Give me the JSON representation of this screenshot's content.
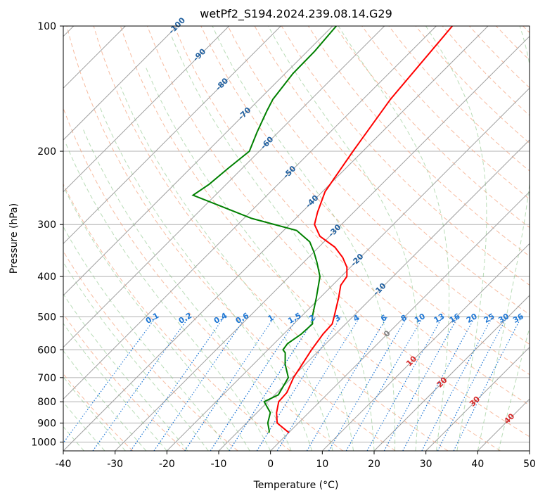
{
  "chart_data": {
    "type": "skew-t",
    "title": "wetPf2_S194.2024.239.08.14.G29",
    "xlabel": "Temperature (°C)",
    "ylabel": "Pressure (hPa)",
    "xlim": [
      -40,
      50
    ],
    "ylim": [
      1050,
      100
    ],
    "y_scale": "log",
    "x_ticks": [
      -40,
      -30,
      -20,
      -10,
      0,
      10,
      20,
      30,
      40,
      50
    ],
    "y_ticks": [
      100,
      200,
      300,
      400,
      500,
      600,
      700,
      800,
      900,
      1000
    ],
    "grid": true,
    "colors": {
      "temperature": "#ff0000",
      "dewpoint": "#008000",
      "isotherm": "#a0a0a0",
      "dry_adiabat": "#f4a582",
      "moist_adiabat": "#7fbf7b",
      "mixing_ratio": "#1f77d4",
      "wetbulb_label": "#1f5f9f",
      "isobar": "#b0b0b0"
    },
    "series": [
      {
        "name": "",
        "variable": "temperature",
        "points": [
          [
            950,
            0.1
          ],
          [
            900,
            -4.1
          ],
          [
            850,
            -6.2
          ],
          [
            800,
            -7.9
          ],
          [
            760,
            -8.1
          ],
          [
            700,
            -9.7
          ],
          [
            650,
            -10.6
          ],
          [
            600,
            -11.6
          ],
          [
            550,
            -12.4
          ],
          [
            520,
            -12.6
          ],
          [
            500,
            -13.6
          ],
          [
            450,
            -16.4
          ],
          [
            420,
            -18.4
          ],
          [
            400,
            -18.9
          ],
          [
            380,
            -20.7
          ],
          [
            360,
            -23.4
          ],
          [
            340,
            -26.9
          ],
          [
            320,
            -31.9
          ],
          [
            300,
            -35.2
          ],
          [
            280,
            -37.0
          ],
          [
            250,
            -39.5
          ],
          [
            200,
            -41.9
          ],
          [
            150,
            -44.7
          ],
          [
            100,
            -46.9
          ]
        ]
      },
      {
        "name": "",
        "variable": "dewpoint",
        "points": [
          [
            950,
            -3.8
          ],
          [
            940,
            -4.1
          ],
          [
            900,
            -5.9
          ],
          [
            850,
            -7.4
          ],
          [
            800,
            -10.7
          ],
          [
            770,
            -9.3
          ],
          [
            700,
            -10.7
          ],
          [
            650,
            -13.9
          ],
          [
            610,
            -16.1
          ],
          [
            600,
            -17.1
          ],
          [
            580,
            -17.4
          ],
          [
            550,
            -16.6
          ],
          [
            520,
            -16.4
          ],
          [
            500,
            -17.8
          ],
          [
            450,
            -20.7
          ],
          [
            400,
            -24.1
          ],
          [
            370,
            -27.4
          ],
          [
            350,
            -29.9
          ],
          [
            330,
            -32.8
          ],
          [
            310,
            -37.5
          ],
          [
            290,
            -48.5
          ],
          [
            270,
            -57.3
          ],
          [
            255,
            -64.3
          ],
          [
            240,
            -63.3
          ],
          [
            220,
            -62.7
          ],
          [
            200,
            -61.9
          ],
          [
            180,
            -64.1
          ],
          [
            160,
            -66.3
          ],
          [
            150,
            -67.4
          ],
          [
            130,
            -68.5
          ],
          [
            115,
            -68.6
          ],
          [
            100,
            -69.3
          ]
        ]
      }
    ],
    "isotherm_labels": [
      "-100",
      "-90",
      "-80",
      "-70",
      "-60",
      "-50",
      "-40",
      "-30",
      "-20",
      "-10"
    ],
    "mixing_ratio_labels": [
      "0.1",
      "0.2",
      "0.4",
      "0.6",
      "1",
      "1.5",
      "2",
      "3",
      "4",
      "6",
      "8",
      "10",
      "13",
      "16",
      "20",
      "25",
      "30",
      "36"
    ],
    "wetbulb_zero_label": "0",
    "theta_labels": [
      "10",
      "20",
      "30",
      "40"
    ]
  }
}
